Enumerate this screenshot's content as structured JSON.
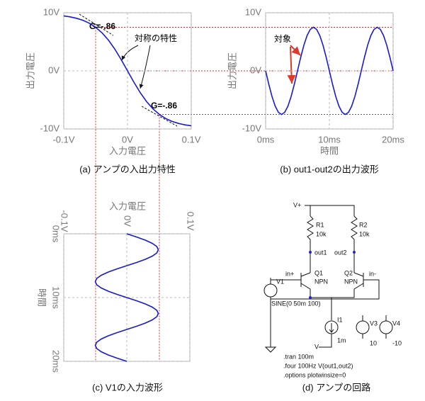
{
  "chart_data": [
    {
      "type": "line",
      "caption": "(a) アンプの入出力特性",
      "xlabel": "入力電圧",
      "ylabel": "出力電圧",
      "x": [
        -0.1,
        -0.09,
        -0.08,
        -0.07,
        -0.06,
        -0.05,
        -0.04,
        -0.03,
        -0.02,
        -0.01,
        0,
        0.01,
        0.02,
        0.03,
        0.04,
        0.05,
        0.06,
        0.07,
        0.08,
        0.09,
        0.1
      ],
      "values": [
        9.46,
        9.29,
        9.05,
        8.71,
        8.21,
        7.5,
        6.55,
        5.3,
        3.76,
        1.95,
        0,
        -1.95,
        -3.76,
        -5.3,
        -6.55,
        -7.5,
        -8.21,
        -8.71,
        -9.05,
        -9.29,
        -9.46
      ],
      "color": "#1a1ad0",
      "xlim": [
        -0.1,
        0.1
      ],
      "xticks": [
        {
          "value": -0.1,
          "label": "-0.1V"
        },
        {
          "value": 0,
          "label": "0V"
        },
        {
          "value": 0.1,
          "label": "0.1V"
        }
      ],
      "ylim": [
        -10,
        10
      ],
      "yticks": [
        {
          "value": -10,
          "label": "-10V"
        },
        {
          "value": 0,
          "label": "0V"
        },
        {
          "value": 10,
          "label": "10V"
        }
      ],
      "grid": true,
      "annotations": [
        "G=-.86",
        "G=-.86",
        "対称の特性"
      ]
    },
    {
      "type": "line",
      "caption": "(b) out1-out2の出力波形",
      "xlabel": "時間",
      "ylabel": "出力電圧",
      "x": [
        0,
        0.5,
        1,
        1.5,
        2,
        2.5,
        3,
        3.5,
        4,
        4.5,
        5,
        5.5,
        6,
        6.5,
        7,
        7.5,
        8,
        8.5,
        9,
        9.5,
        10,
        10.5,
        11,
        11.5,
        12,
        12.5,
        13,
        13.5,
        14,
        14.5,
        15,
        15.5,
        16,
        16.5,
        17,
        17.5,
        18,
        18.5,
        19,
        19.5,
        20
      ],
      "values": [
        0,
        -2.32,
        -4.41,
        -6.07,
        -7.13,
        -7.5,
        -7.13,
        -6.07,
        -4.41,
        -2.32,
        0,
        2.32,
        4.41,
        6.07,
        7.13,
        7.5,
        7.13,
        6.07,
        4.41,
        2.32,
        0,
        -2.32,
        -4.41,
        -6.07,
        -7.13,
        -7.5,
        -7.13,
        -6.07,
        -4.41,
        -2.32,
        0,
        2.32,
        4.41,
        6.07,
        7.13,
        7.5,
        7.13,
        6.07,
        4.41,
        2.32,
        0
      ],
      "color": "#1a1ad0",
      "xlim": [
        0,
        20
      ],
      "xticks": [
        {
          "value": 0,
          "label": "0ms"
        },
        {
          "value": 10,
          "label": "10ms"
        },
        {
          "value": 20,
          "label": "20ms"
        }
      ],
      "ylim": [
        -10,
        10
      ],
      "yticks": [
        {
          "value": -10,
          "label": "-10V"
        },
        {
          "value": 0,
          "label": "0V"
        },
        {
          "value": 10,
          "label": "10V"
        }
      ],
      "grid": true,
      "annotations": [
        "対象"
      ]
    },
    {
      "type": "line",
      "caption": "(c) V1の入力波形",
      "xlabel": "時間",
      "ylabel": "入力電圧",
      "orientation": "vertical",
      "x": [
        0,
        0.5,
        1,
        1.5,
        2,
        2.5,
        3,
        3.5,
        4,
        4.5,
        5,
        5.5,
        6,
        6.5,
        7,
        7.5,
        8,
        8.5,
        9,
        9.5,
        10,
        10.5,
        11,
        11.5,
        12,
        12.5,
        13,
        13.5,
        14,
        14.5,
        15,
        15.5,
        16,
        16.5,
        17,
        17.5,
        18,
        18.5,
        19,
        19.5,
        20
      ],
      "values": [
        0,
        0.0155,
        0.0294,
        0.0405,
        0.0476,
        0.05,
        0.0476,
        0.0405,
        0.0294,
        0.0155,
        0,
        -0.0155,
        -0.0294,
        -0.0405,
        -0.0476,
        -0.05,
        -0.0476,
        -0.0405,
        -0.0294,
        -0.0155,
        0,
        0.0155,
        0.0294,
        0.0405,
        0.0476,
        0.05,
        0.0476,
        0.0405,
        0.0294,
        0.0155,
        0,
        -0.0155,
        -0.0294,
        -0.0405,
        -0.0476,
        -0.05,
        -0.0476,
        -0.0405,
        -0.0294,
        -0.0155,
        0
      ],
      "color": "#1a1ad0",
      "xlim": [
        0,
        20
      ],
      "xticks": [
        {
          "value": 0,
          "label": "0ms"
        },
        {
          "value": 10,
          "label": "10ms"
        },
        {
          "value": 20,
          "label": "20ms"
        }
      ],
      "ylim": [
        -0.1,
        0.1
      ],
      "yticks": [
        {
          "value": -0.1,
          "label": "-0.1V"
        },
        {
          "value": 0,
          "label": "0V"
        },
        {
          "value": 0.1,
          "label": "0.1V"
        }
      ],
      "grid": true
    }
  ],
  "circuit": {
    "caption": "(d) アンプの回路",
    "labels": [
      "V+",
      "R1",
      "10k",
      "R2",
      "10k",
      "out1",
      "out2",
      "in+",
      "Q1",
      "NPN",
      "Q2",
      "NPN",
      "in-",
      "V1",
      "SINE(0 50m 100)",
      "I1",
      "1m",
      "V-",
      "V3",
      "10",
      "V4",
      "-10",
      ".tran 100m",
      ".four 100Hz V(out1,out2)",
      ".options plotwinsize=0"
    ]
  }
}
